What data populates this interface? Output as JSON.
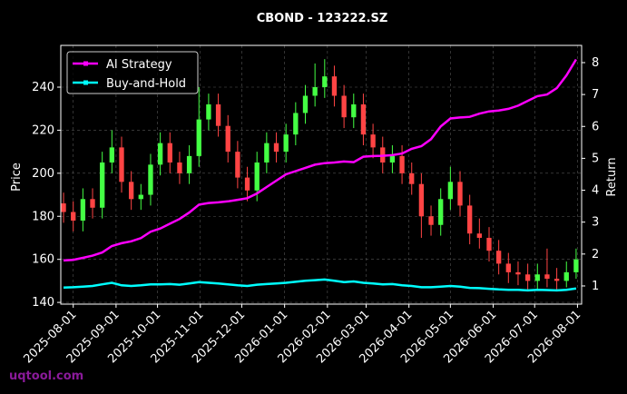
{
  "chart_data": {
    "type": "candlestick",
    "title": "CBOND - 123222.SZ",
    "ylabel": "Price",
    "y2label": "Return",
    "watermark": "uqtool.com",
    "x": [
      "2025-07-25",
      "2025-08-01",
      "2025-08-08",
      "2025-08-15",
      "2025-08-22",
      "2025-08-29",
      "2025-09-05",
      "2025-09-12",
      "2025-09-19",
      "2025-09-26",
      "2025-10-03",
      "2025-10-10",
      "2025-10-17",
      "2025-10-24",
      "2025-10-31",
      "2025-11-07",
      "2025-11-14",
      "2025-11-21",
      "2025-11-28",
      "2025-12-05",
      "2025-12-12",
      "2025-12-19",
      "2025-12-26",
      "2026-01-02",
      "2026-01-09",
      "2026-01-16",
      "2026-01-23",
      "2026-01-30",
      "2026-02-06",
      "2026-02-13",
      "2026-02-20",
      "2026-02-27",
      "2026-03-06",
      "2026-03-13",
      "2026-03-20",
      "2026-03-27",
      "2026-04-03",
      "2026-04-10",
      "2026-04-17",
      "2026-04-24",
      "2026-05-01",
      "2026-05-08",
      "2026-05-15",
      "2026-05-22",
      "2026-05-29",
      "2026-06-05",
      "2026-06-12",
      "2026-06-19",
      "2026-06-26",
      "2026-07-03",
      "2026-07-10",
      "2026-07-17",
      "2026-07-24",
      "2026-07-31"
    ],
    "open": [
      186,
      182,
      178,
      188,
      184,
      205,
      212,
      196,
      188,
      190,
      204,
      214,
      205,
      200,
      208,
      225,
      232,
      222,
      210,
      198,
      192,
      205,
      214,
      210,
      218,
      228,
      236,
      240,
      245,
      236,
      226,
      232,
      218,
      212,
      205,
      208,
      200,
      195,
      180,
      176,
      188,
      196,
      185,
      172,
      170,
      164,
      158,
      154,
      153,
      150,
      153,
      151,
      150,
      154
    ],
    "high": [
      191,
      187,
      193,
      193,
      210,
      220,
      217,
      201,
      195,
      209,
      219,
      219,
      210,
      213,
      240,
      237,
      237,
      227,
      215,
      203,
      210,
      219,
      219,
      223,
      233,
      241,
      251,
      253,
      250,
      241,
      237,
      237,
      223,
      217,
      213,
      213,
      205,
      200,
      185,
      193,
      203,
      201,
      190,
      179,
      175,
      169,
      163,
      159,
      158,
      158,
      165,
      156,
      159,
      165
    ],
    "low": [
      177,
      173,
      173,
      179,
      179,
      200,
      191,
      183,
      183,
      185,
      199,
      200,
      195,
      195,
      203,
      220,
      217,
      205,
      193,
      187,
      187,
      200,
      205,
      205,
      213,
      223,
      231,
      235,
      231,
      221,
      221,
      213,
      207,
      200,
      200,
      195,
      190,
      170,
      171,
      171,
      183,
      180,
      167,
      165,
      159,
      153,
      149,
      148,
      146,
      146,
      147,
      146,
      147,
      151
    ],
    "close": [
      182,
      178,
      188,
      184,
      205,
      212,
      196,
      188,
      190,
      204,
      214,
      205,
      200,
      208,
      225,
      232,
      222,
      210,
      198,
      192,
      205,
      214,
      210,
      218,
      228,
      236,
      240,
      245,
      236,
      226,
      232,
      218,
      212,
      205,
      208,
      200,
      195,
      180,
      176,
      188,
      196,
      185,
      172,
      170,
      164,
      158,
      154,
      153,
      150,
      153,
      151,
      150,
      154,
      160
    ],
    "up_color": "#44ff44",
    "down_color": "#ff4444",
    "series": [
      {
        "name": "AI Strategy",
        "color": "#ff00ff",
        "axis": "y2",
        "values": [
          1.8,
          1.82,
          1.88,
          1.95,
          2.05,
          2.25,
          2.34,
          2.4,
          2.5,
          2.7,
          2.8,
          2.95,
          3.1,
          3.3,
          3.55,
          3.6,
          3.62,
          3.65,
          3.7,
          3.75,
          3.9,
          4.1,
          4.3,
          4.5,
          4.6,
          4.7,
          4.8,
          4.85,
          4.87,
          4.9,
          4.88,
          5.05,
          5.07,
          5.08,
          5.1,
          5.15,
          5.3,
          5.38,
          5.6,
          6.0,
          6.25,
          6.28,
          6.3,
          6.4,
          6.47,
          6.5,
          6.55,
          6.65,
          6.8,
          6.95,
          7.0,
          7.2,
          7.6,
          8.1
        ]
      },
      {
        "name": "Buy-and-Hold",
        "color": "#00ffff",
        "axis": "y2",
        "values": [
          0.95,
          0.96,
          0.98,
          1.0,
          1.05,
          1.1,
          1.02,
          1.0,
          1.02,
          1.05,
          1.05,
          1.06,
          1.04,
          1.08,
          1.12,
          1.1,
          1.08,
          1.05,
          1.02,
          1.0,
          1.04,
          1.06,
          1.08,
          1.1,
          1.13,
          1.16,
          1.18,
          1.2,
          1.16,
          1.12,
          1.14,
          1.1,
          1.08,
          1.05,
          1.06,
          1.02,
          1.0,
          0.96,
          0.96,
          0.98,
          1.0,
          0.98,
          0.94,
          0.93,
          0.91,
          0.89,
          0.88,
          0.88,
          0.86,
          0.88,
          0.87,
          0.86,
          0.88,
          0.92
        ]
      }
    ],
    "xlim": [
      "2025-07-23",
      "2026-08-04"
    ],
    "xticks": [
      "2025-08-01",
      "2025-09-01",
      "2025-10-01",
      "2025-11-01",
      "2025-12-01",
      "2026-01-01",
      "2026-02-01",
      "2026-03-01",
      "2026-04-01",
      "2026-05-01",
      "2026-06-01",
      "2026-07-01",
      "2026-08-01"
    ],
    "ylim": [
      139.2,
      259.4
    ],
    "yticks": [
      140,
      160,
      180,
      200,
      220,
      240
    ],
    "y2lim": [
      0.43,
      8.54
    ],
    "y2ticks": [
      1,
      2,
      3,
      4,
      5,
      6,
      7,
      8
    ],
    "grid": true,
    "legend": "upper left"
  }
}
